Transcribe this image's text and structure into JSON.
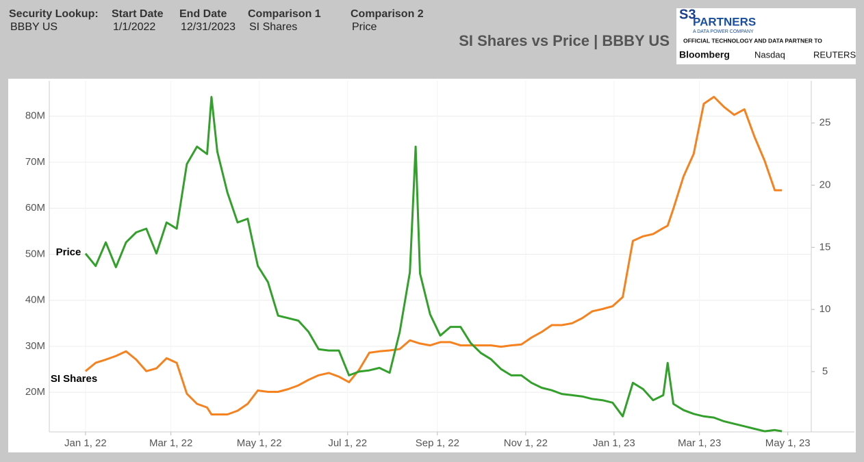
{
  "header": {
    "filters": [
      {
        "label": "Security Lookup:",
        "value": "BBBY US"
      },
      {
        "label": "Start Date",
        "value": "1/1/2022"
      },
      {
        "label": "End Date",
        "value": "12/31/2023"
      },
      {
        "label": "Comparison 1",
        "value": "SI Shares"
      },
      {
        "label": "Comparison 2",
        "value": "Price"
      }
    ],
    "logo": {
      "mark": "S3",
      "name": "PARTNERS",
      "tagline": "A DATA POWER COMPANY",
      "partner_text": "OFFICIAL TECHNOLOGY AND DATA PARTNER TO",
      "partners": [
        "Bloomberg",
        "Nasdaq",
        "REUTERS"
      ]
    }
  },
  "chart_data": {
    "type": "line",
    "title": "SI Shares vs Price | BBBY US",
    "x": [
      "2022-01-01",
      "2022-01-08",
      "2022-01-15",
      "2022-01-22",
      "2022-01-29",
      "2022-02-05",
      "2022-02-12",
      "2022-02-19",
      "2022-02-26",
      "2022-03-05",
      "2022-03-12",
      "2022-03-19",
      "2022-03-26",
      "2022-03-29",
      "2022-04-02",
      "2022-04-09",
      "2022-04-16",
      "2022-04-23",
      "2022-04-30",
      "2022-05-07",
      "2022-05-14",
      "2022-05-21",
      "2022-05-28",
      "2022-06-04",
      "2022-06-11",
      "2022-06-18",
      "2022-06-25",
      "2022-07-02",
      "2022-07-09",
      "2022-07-16",
      "2022-07-23",
      "2022-07-30",
      "2022-08-06",
      "2022-08-13",
      "2022-08-17",
      "2022-08-20",
      "2022-08-27",
      "2022-09-03",
      "2022-09-10",
      "2022-09-17",
      "2022-09-24",
      "2022-10-01",
      "2022-10-08",
      "2022-10-15",
      "2022-10-22",
      "2022-10-29",
      "2022-11-05",
      "2022-11-12",
      "2022-11-19",
      "2022-11-26",
      "2022-12-03",
      "2022-12-10",
      "2022-12-17",
      "2022-12-24",
      "2022-12-31",
      "2023-01-07",
      "2023-01-14",
      "2023-01-21",
      "2023-01-28",
      "2023-02-04",
      "2023-02-07",
      "2023-02-11",
      "2023-02-18",
      "2023-02-25",
      "2023-03-04",
      "2023-03-11",
      "2023-03-18",
      "2023-03-25",
      "2023-04-01",
      "2023-04-08",
      "2023-04-15",
      "2023-04-22",
      "2023-04-27"
    ],
    "series": [
      {
        "name": "SI Shares",
        "color": "#f5821f",
        "axis": "y",
        "values": [
          24600000,
          26400000,
          27100000,
          27900000,
          28900000,
          27100000,
          24600000,
          25200000,
          27400000,
          26400000,
          19700000,
          17500000,
          16700000,
          15200000,
          15200000,
          15200000,
          16000000,
          17500000,
          20400000,
          20100000,
          20100000,
          20700000,
          21500000,
          22700000,
          23700000,
          24200000,
          23400000,
          22200000,
          24900000,
          28600000,
          28900000,
          29100000,
          29400000,
          31300000,
          30900000,
          30600000,
          30200000,
          30900000,
          30900000,
          30200000,
          30200000,
          30200000,
          30200000,
          29900000,
          30200000,
          30400000,
          31900000,
          33100000,
          34600000,
          34600000,
          35000000,
          36100000,
          37600000,
          38100000,
          38700000,
          40700000,
          52900000,
          53900000,
          54400000,
          55700000,
          56200000,
          59900000,
          66900000,
          71800000,
          82700000,
          84200000,
          82000000,
          80300000,
          81500000,
          75500000,
          70300000,
          63900000,
          63900000
        ]
      },
      {
        "name": "Price",
        "color": "#33a02c",
        "axis": "y2",
        "values": [
          14.5,
          13.5,
          15.4,
          13.4,
          15.4,
          16.2,
          16.5,
          14.5,
          17.0,
          16.5,
          21.7,
          23.1,
          22.5,
          27.1,
          22.7,
          19.4,
          17.0,
          17.3,
          13.5,
          12.2,
          9.5,
          9.3,
          9.1,
          8.2,
          6.8,
          6.7,
          6.7,
          4.7,
          5.0,
          5.1,
          5.3,
          4.9,
          8.2,
          13.0,
          23.1,
          12.9,
          9.6,
          7.9,
          8.6,
          8.6,
          7.3,
          6.5,
          6.0,
          5.2,
          4.7,
          4.7,
          4.1,
          3.7,
          3.5,
          3.2,
          3.1,
          3.0,
          2.8,
          2.7,
          2.5,
          1.4,
          4.1,
          3.6,
          2.7,
          3.1,
          5.7,
          2.4,
          1.9,
          1.6,
          1.4,
          1.3,
          1.0,
          0.8,
          0.6,
          0.4,
          0.2,
          0.3,
          0.2
        ]
      }
    ],
    "xlim": [
      "2021-12-07",
      "2023-06-16"
    ],
    "xticks": [
      {
        "value": "2022-01-01",
        "label": "Jan 1, 22"
      },
      {
        "value": "2022-03-01",
        "label": "Mar 1, 22"
      },
      {
        "value": "2022-05-01",
        "label": "May 1, 22"
      },
      {
        "value": "2022-07-01",
        "label": "Jul 1, 22"
      },
      {
        "value": "2022-09-01",
        "label": "Sep 1, 22"
      },
      {
        "value": "2022-11-01",
        "label": "Nov 1, 22"
      },
      {
        "value": "2023-01-01",
        "label": "Jan 1, 23"
      },
      {
        "value": "2023-03-01",
        "label": "Mar 1, 23"
      },
      {
        "value": "2023-05-01",
        "label": "May 1, 23"
      }
    ],
    "ylim": [
      11400000,
      87700000
    ],
    "yticks": [
      {
        "value": 20000000,
        "label": "20M"
      },
      {
        "value": 30000000,
        "label": "30M"
      },
      {
        "value": 40000000,
        "label": "40M"
      },
      {
        "value": 50000000,
        "label": "50M"
      },
      {
        "value": 60000000,
        "label": "60M"
      },
      {
        "value": 70000000,
        "label": "70M"
      },
      {
        "value": 80000000,
        "label": "80M"
      }
    ],
    "y2lim": [
      0.15,
      28.4
    ],
    "y2ticks": [
      5,
      10,
      15,
      20,
      25
    ],
    "grid": true
  }
}
